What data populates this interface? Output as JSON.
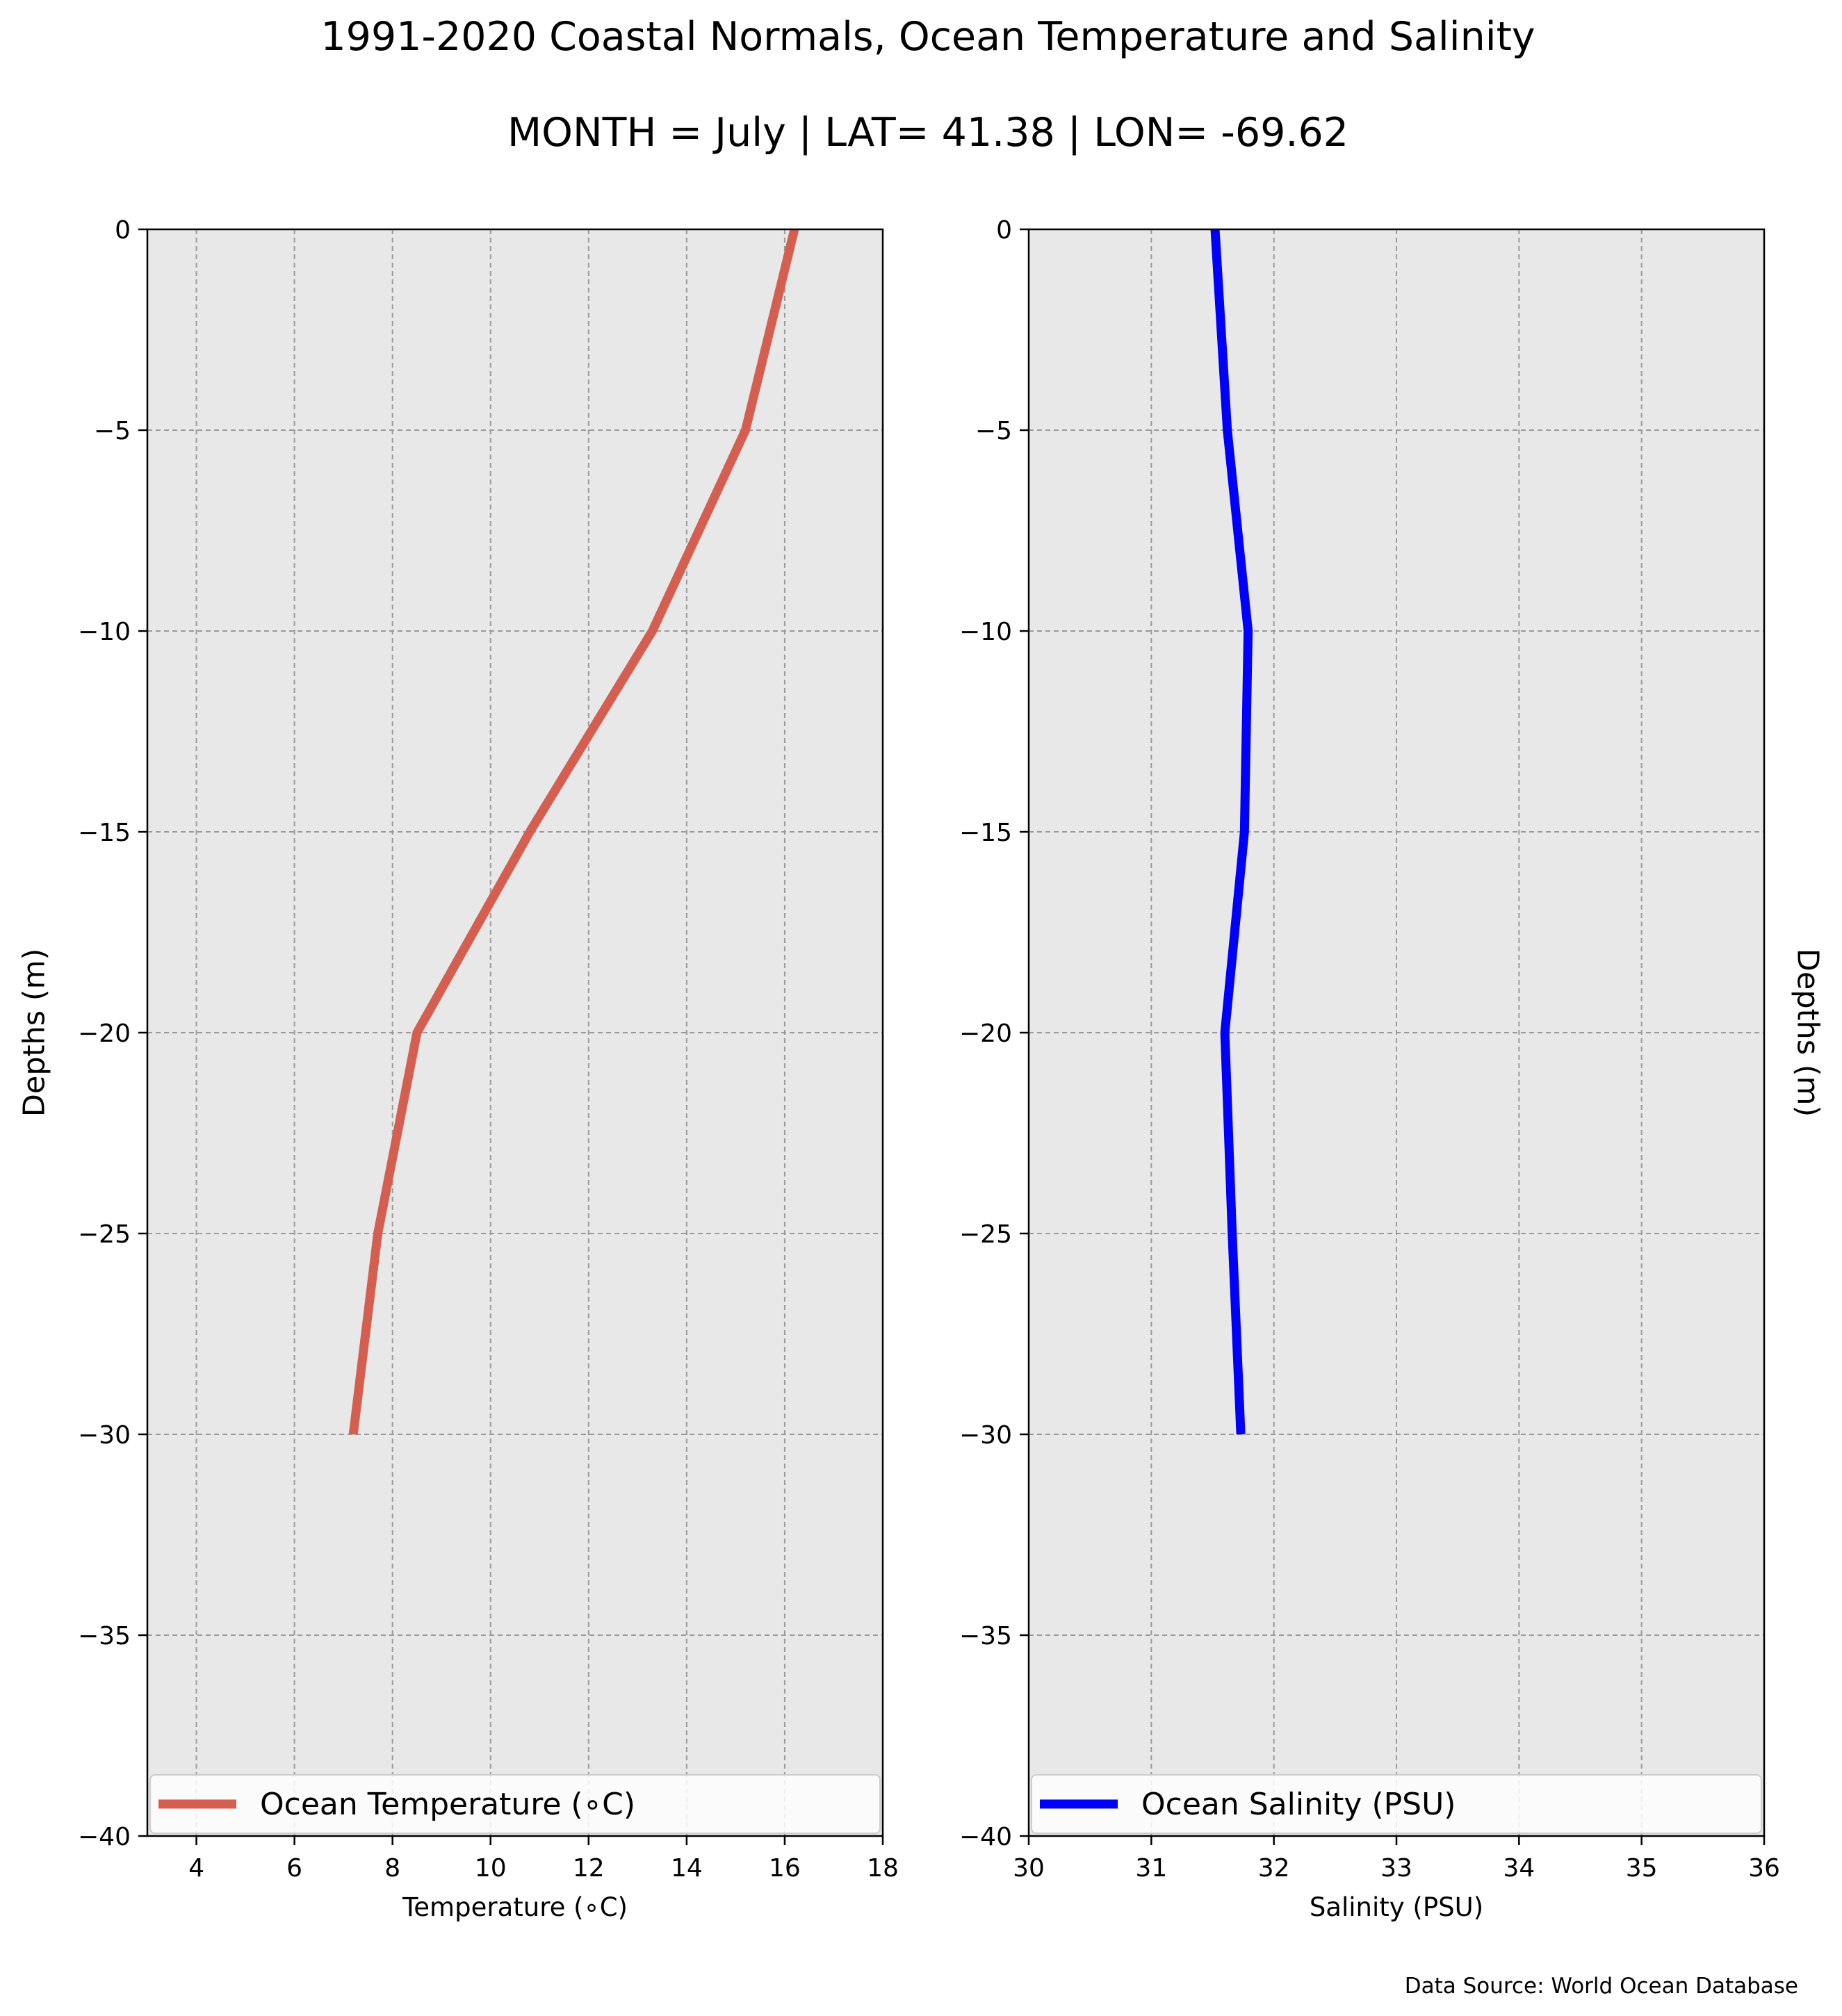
{
  "title": "1991-2020 Coastal Normals, Ocean Temperature and Salinity",
  "subtitle": "MONTH = July | LAT= 41.38 | LON= -69.62",
  "source_note": "Data Source: World Ocean Database",
  "chart_data": [
    {
      "type": "line",
      "xlabel": "Temperature (∘C)",
      "ylabel": "Depths (m)",
      "xlim": [
        3,
        18
      ],
      "ylim": [
        -40,
        0
      ],
      "xticks": [
        4,
        6,
        8,
        10,
        12,
        14,
        16,
        18
      ],
      "yticks": [
        0,
        -5,
        -10,
        -15,
        -20,
        -25,
        -30,
        -35,
        -40
      ],
      "grid": true,
      "legend_position": "lower center",
      "series": [
        {
          "name": "Ocean Temperature (∘C)",
          "color": "#d45f50",
          "x": [
            16.2,
            15.2,
            13.3,
            10.8,
            8.5,
            7.7,
            7.2
          ],
          "y": [
            0,
            -5,
            -10,
            -15,
            -20,
            -25,
            -30
          ]
        }
      ]
    },
    {
      "type": "line",
      "xlabel": "Salinity (PSU)",
      "ylabel": "Depths (m)",
      "xlim": [
        30,
        36
      ],
      "ylim": [
        -40,
        0
      ],
      "xticks": [
        30,
        31,
        32,
        33,
        34,
        35,
        36
      ],
      "yticks": [
        0,
        -5,
        -10,
        -15,
        -20,
        -25,
        -30,
        -35,
        -40
      ],
      "grid": true,
      "legend_position": "lower center",
      "series": [
        {
          "name": "Ocean Salinity (PSU)",
          "color": "#0000ff",
          "x": [
            31.52,
            31.62,
            31.79,
            31.76,
            31.6,
            31.66,
            31.73
          ],
          "y": [
            0,
            -5,
            -10,
            -15,
            -20,
            -25,
            -30
          ]
        }
      ]
    }
  ]
}
